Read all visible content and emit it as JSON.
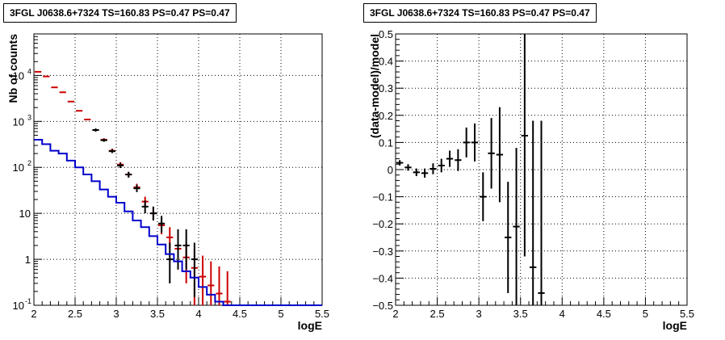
{
  "colors": {
    "data": "#000000",
    "model": "#cc0000",
    "background": "#0000cc",
    "grid": "#000000"
  },
  "chart_data": [
    {
      "type": "histogram",
      "title": "3FGL J0638.6+7324 TS=160.83 PS=0.47 PS=0.47",
      "xlabel": "logE",
      "ylabel": "Nb of counts",
      "xlim": [
        2,
        5.5
      ],
      "ylim": [
        0.1,
        80000
      ],
      "yscale": "log",
      "grid": true,
      "x_ticks": [
        "2",
        "2.5",
        "3",
        "3.5",
        "4",
        "4.5",
        "5",
        "5.5"
      ],
      "y_ticks": [
        {
          "label": "10",
          "sup": "4",
          "value": 10000
        },
        {
          "label": "10",
          "sup": "3",
          "value": 1000
        },
        {
          "label": "10",
          "sup": "2",
          "value": 100
        },
        {
          "label": "10",
          "sup": "",
          "value": 10
        },
        {
          "label": "1",
          "sup": "",
          "value": 1
        },
        {
          "label": "10",
          "sup": "-1",
          "value": 0.1
        }
      ],
      "bin_width": 0.1,
      "series": [
        {
          "kind": "model_points",
          "color": "#cc0000",
          "points": [
            {
              "x": 2.05,
              "y": 12000,
              "lo": 12000,
              "hi": 12000
            },
            {
              "x": 2.15,
              "y": 9500,
              "lo": 9500,
              "hi": 9500
            },
            {
              "x": 2.25,
              "y": 5500,
              "lo": 5500,
              "hi": 5500
            },
            {
              "x": 2.35,
              "y": 4300,
              "lo": 4300,
              "hi": 4300
            },
            {
              "x": 2.45,
              "y": 2700,
              "lo": 2700,
              "hi": 2700
            },
            {
              "x": 2.55,
              "y": 1700,
              "lo": 1700,
              "hi": 1700
            },
            {
              "x": 2.65,
              "y": 1100,
              "lo": 1100,
              "hi": 1100
            },
            {
              "x": 2.75,
              "y": 650,
              "lo": 600,
              "hi": 700
            },
            {
              "x": 2.85,
              "y": 400,
              "lo": 370,
              "hi": 430
            },
            {
              "x": 2.95,
              "y": 230,
              "lo": 210,
              "hi": 255
            },
            {
              "x": 3.05,
              "y": 115,
              "lo": 100,
              "hi": 130
            },
            {
              "x": 3.15,
              "y": 70,
              "lo": 60,
              "hi": 80
            },
            {
              "x": 3.25,
              "y": 37,
              "lo": 31,
              "hi": 44
            },
            {
              "x": 3.35,
              "y": 18,
              "lo": 14,
              "hi": 23
            },
            {
              "x": 3.45,
              "y": 10,
              "lo": 7,
              "hi": 14
            },
            {
              "x": 3.55,
              "y": 5.5,
              "lo": 3.5,
              "hi": 8
            },
            {
              "x": 3.65,
              "y": 3,
              "lo": 1.7,
              "hi": 5
            },
            {
              "x": 3.75,
              "y": 1.7,
              "lo": 0.6,
              "hi": 3.2
            },
            {
              "x": 3.85,
              "y": 1.1,
              "lo": 0.3,
              "hi": 2.3
            },
            {
              "x": 3.95,
              "y": 0.65,
              "lo": 0.1,
              "hi": 1.6
            },
            {
              "x": 4.05,
              "y": 0.42,
              "lo": 0.1,
              "hi": 1.2
            },
            {
              "x": 4.15,
              "y": 0.27,
              "lo": 0.1,
              "hi": 0.9
            },
            {
              "x": 4.25,
              "y": 0.18,
              "lo": 0.1,
              "hi": 0.7
            },
            {
              "x": 4.35,
              "y": 0.12,
              "lo": 0.1,
              "hi": 0.55
            }
          ]
        },
        {
          "kind": "data_points",
          "color": "#000000",
          "points": [
            {
              "x": 2.75,
              "y": 650,
              "lo": 600,
              "hi": 700
            },
            {
              "x": 2.85,
              "y": 390,
              "lo": 360,
              "hi": 420
            },
            {
              "x": 2.95,
              "y": 225,
              "lo": 205,
              "hi": 250
            },
            {
              "x": 3.05,
              "y": 110,
              "lo": 97,
              "hi": 125
            },
            {
              "x": 3.15,
              "y": 70,
              "lo": 60,
              "hi": 80
            },
            {
              "x": 3.25,
              "y": 35,
              "lo": 29,
              "hi": 42
            },
            {
              "x": 3.35,
              "y": 14,
              "lo": 10,
              "hi": 19
            },
            {
              "x": 3.45,
              "y": 10,
              "lo": 7,
              "hi": 14
            },
            {
              "x": 3.55,
              "y": 6,
              "lo": 3.8,
              "hi": 8.8
            },
            {
              "x": 3.65,
              "y": 1,
              "lo": 0.3,
              "hi": 2.3
            },
            {
              "x": 3.75,
              "y": 2,
              "lo": 0.6,
              "hi": 4.5
            },
            {
              "x": 3.85,
              "y": 2,
              "lo": 0.6,
              "hi": 4.5
            },
            {
              "x": 3.95,
              "y": 1,
              "lo": 0.15,
              "hi": 2.3
            }
          ]
        },
        {
          "kind": "step",
          "color": "#0000cc",
          "x_edges": [
            2.0,
            2.1,
            2.2,
            2.3,
            2.4,
            2.5,
            2.6,
            2.7,
            2.8,
            2.9,
            3.0,
            3.1,
            3.2,
            3.3,
            3.4,
            3.5,
            3.6,
            3.7,
            3.8,
            3.9,
            4.0,
            4.1,
            4.2,
            4.3,
            4.4,
            4.5,
            5.5
          ],
          "values": [
            400,
            320,
            230,
            200,
            140,
            100,
            70,
            50,
            33,
            23,
            17,
            11,
            7,
            5,
            3.2,
            2.1,
            1.3,
            0.9,
            0.55,
            0.4,
            0.25,
            0.17,
            0.12,
            0.1,
            0.1,
            0.1
          ]
        }
      ]
    },
    {
      "type": "scatter",
      "title": "3FGL J0638.6+7324 TS=160.83 PS=0.47 PS=0.47",
      "xlabel": "logE",
      "ylabel": "(data-model)/model",
      "xlim": [
        2,
        5.5
      ],
      "ylim": [
        -0.5,
        0.5
      ],
      "grid": true,
      "x_ticks": [
        "2",
        "2.5",
        "3",
        "3.5",
        "4",
        "4.5",
        "5",
        "5.5"
      ],
      "y_ticks": [
        "0.5",
        "0.4",
        "0.3",
        "0.2",
        "0.1",
        "0",
        "-0.1",
        "-0.2",
        "-0.3",
        "-0.4",
        "-0.5"
      ],
      "bin_width": 0.1,
      "series": [
        {
          "kind": "data_points",
          "color": "#000000",
          "points": [
            {
              "x": 2.05,
              "y": 0.025,
              "lo": 0.015,
              "hi": 0.035
            },
            {
              "x": 2.15,
              "y": 0.008,
              "lo": -0.004,
              "hi": 0.02
            },
            {
              "x": 2.25,
              "y": -0.01,
              "lo": -0.024,
              "hi": 0.004
            },
            {
              "x": 2.35,
              "y": -0.013,
              "lo": -0.03,
              "hi": 0.004
            },
            {
              "x": 2.45,
              "y": 0.003,
              "lo": -0.017,
              "hi": 0.023
            },
            {
              "x": 2.55,
              "y": 0.015,
              "lo": -0.01,
              "hi": 0.04
            },
            {
              "x": 2.65,
              "y": 0.04,
              "lo": 0.01,
              "hi": 0.07
            },
            {
              "x": 2.75,
              "y": 0.035,
              "lo": -0.005,
              "hi": 0.075
            },
            {
              "x": 2.85,
              "y": 0.1,
              "lo": 0.045,
              "hi": 0.155
            },
            {
              "x": 2.95,
              "y": 0.1,
              "lo": 0.03,
              "hi": 0.17
            },
            {
              "x": 3.05,
              "y": -0.1,
              "lo": -0.19,
              "hi": -0.01
            },
            {
              "x": 3.15,
              "y": 0.06,
              "lo": -0.07,
              "hi": 0.19
            },
            {
              "x": 3.25,
              "y": 0.055,
              "lo": -0.12,
              "hi": 0.23
            },
            {
              "x": 3.35,
              "y": -0.25,
              "lo": -0.455,
              "hi": -0.045
            },
            {
              "x": 3.45,
              "y": -0.21,
              "lo": -0.5,
              "hi": 0.08
            },
            {
              "x": 3.55,
              "y": 0.125,
              "lo": -0.32,
              "hi": 0.5
            },
            {
              "x": 3.65,
              "y": -0.36,
              "lo": -0.5,
              "hi": 0.18
            },
            {
              "x": 3.75,
              "y": -0.455,
              "lo": -0.5,
              "hi": 0.18
            }
          ]
        }
      ]
    }
  ]
}
